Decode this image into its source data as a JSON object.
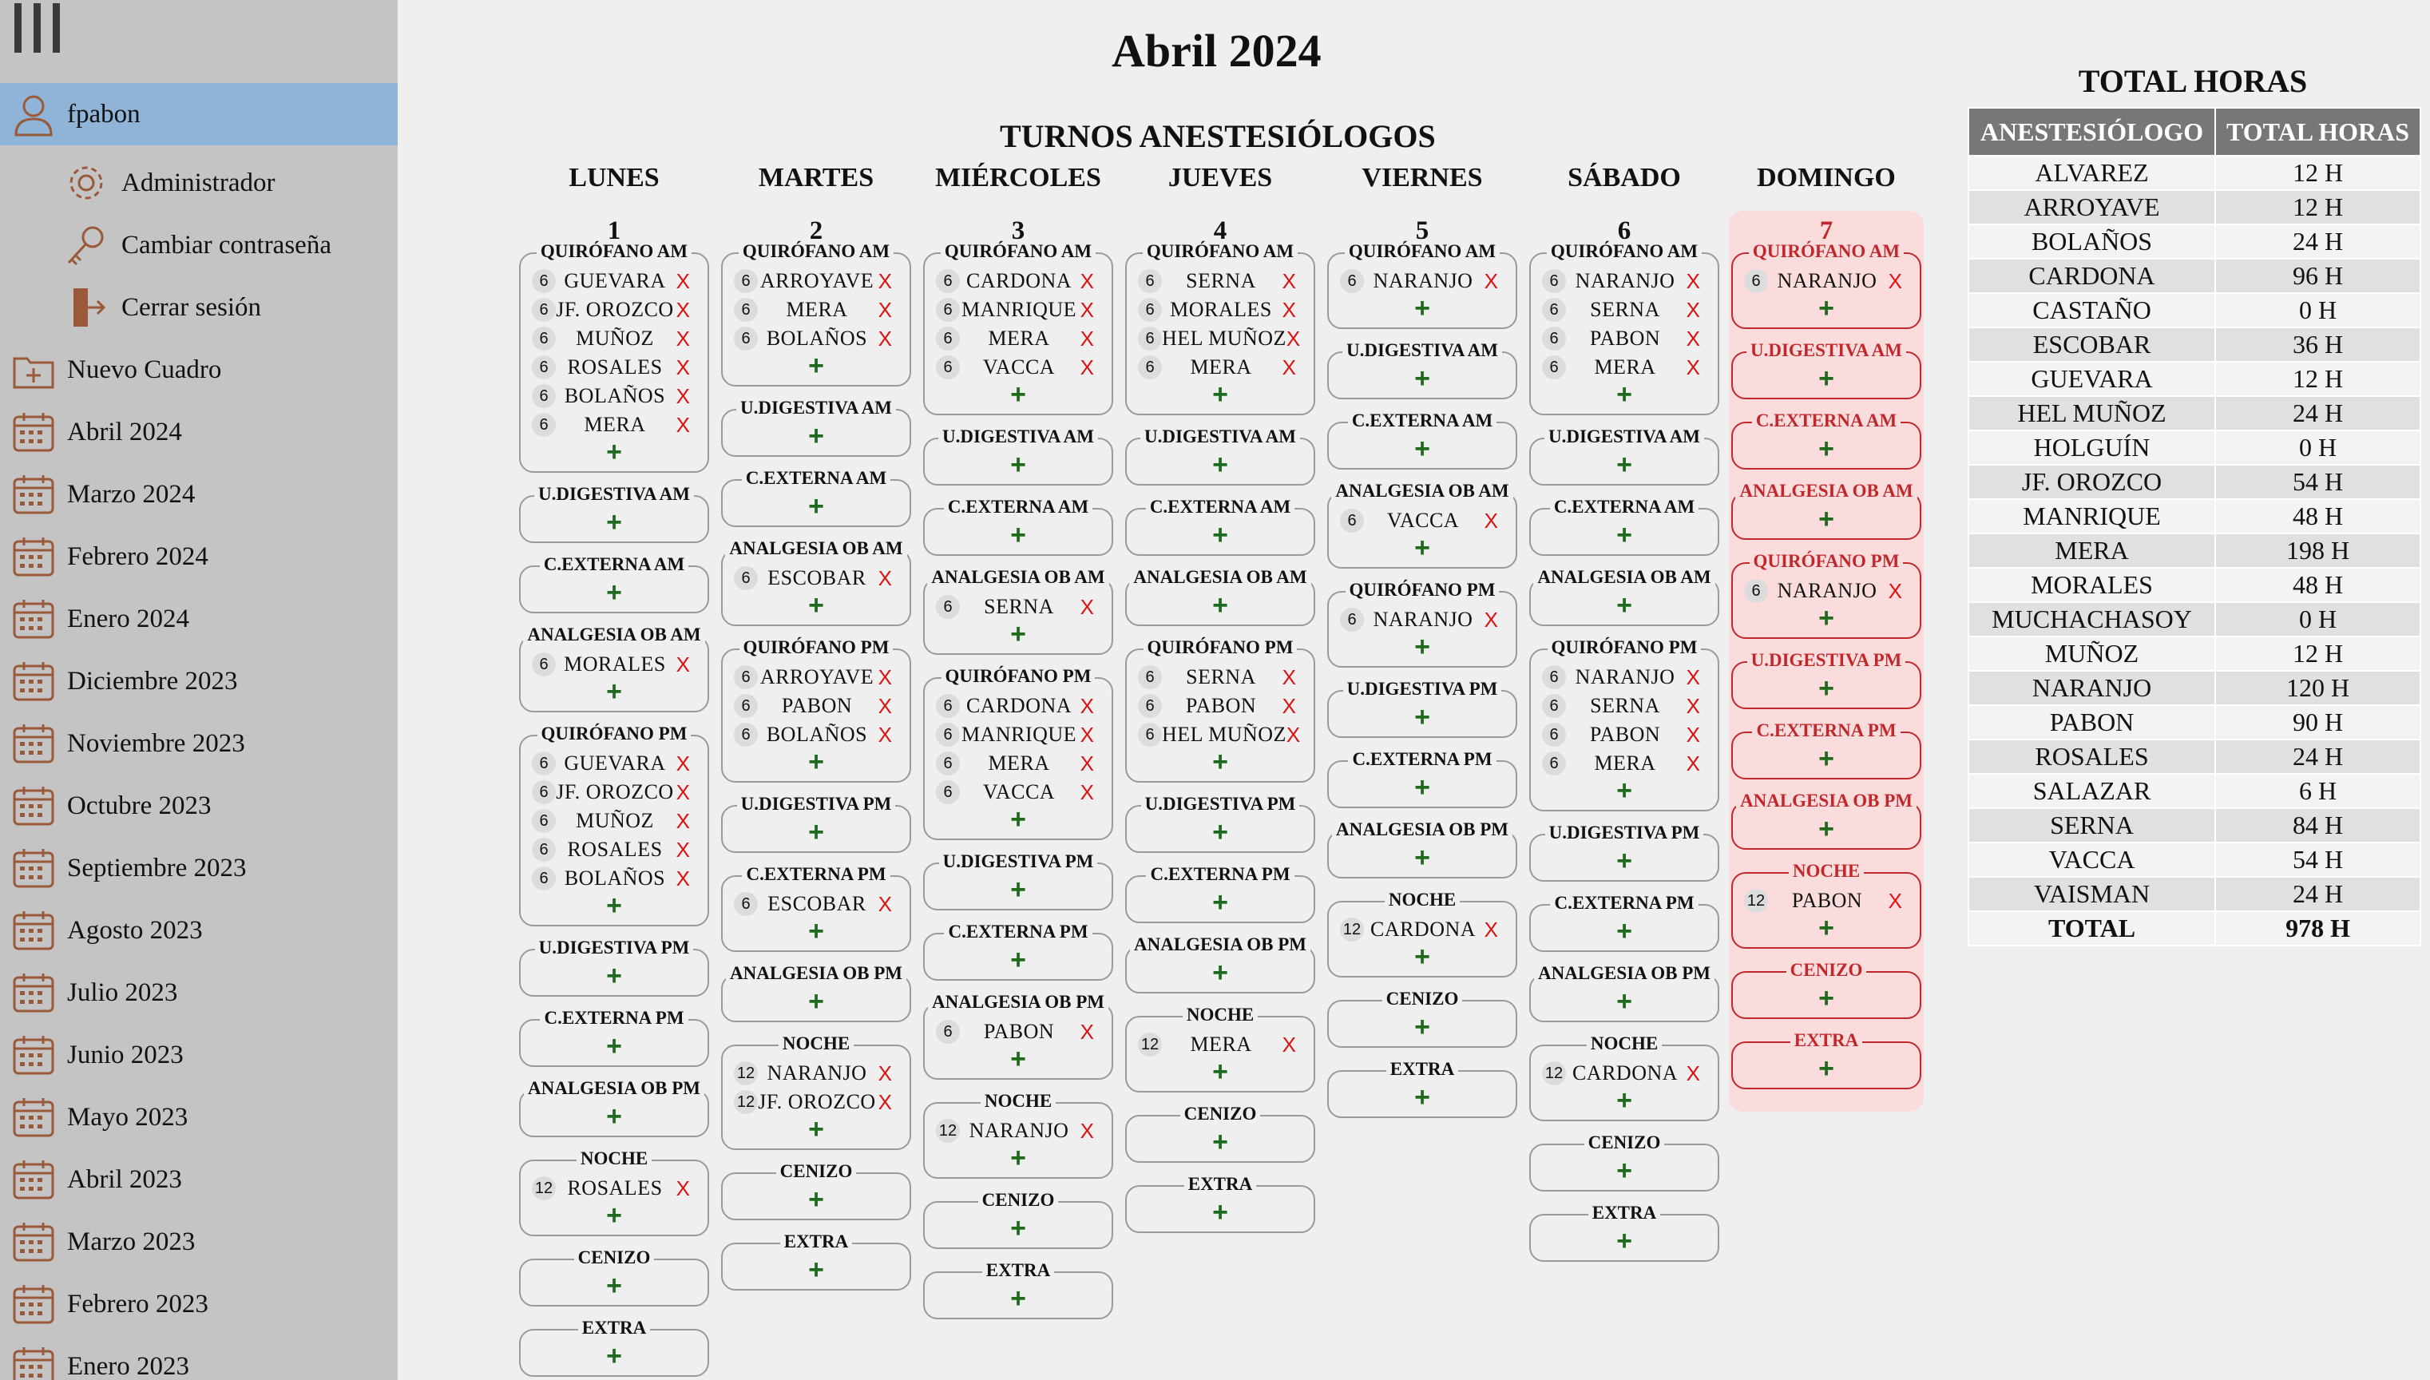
{
  "sidebar": {
    "user": "fpabon",
    "sub": [
      {
        "label": "Administrador",
        "icon": "gear-icon"
      },
      {
        "label": "Cambiar contraseña",
        "icon": "key-icon"
      },
      {
        "label": "Cerrar sesión",
        "icon": "logout-icon"
      }
    ],
    "new": "Nuevo Cuadro",
    "months": [
      "Abril 2024",
      "Marzo 2024",
      "Febrero 2024",
      "Enero 2024",
      "Diciembre 2023",
      "Noviembre 2023",
      "Octubre 2023",
      "Septiembre 2023",
      "Agosto 2023",
      "Julio 2023",
      "Junio 2023",
      "Mayo 2023",
      "Abril 2023",
      "Marzo 2023",
      "Febrero 2023",
      "Enero 2023"
    ]
  },
  "title": "Abril 2024",
  "subtitle": "TURNOS ANESTESIÓLOGOS",
  "days": [
    "LUNES",
    "MARTES",
    "MIÉRCOLES",
    "JUEVES",
    "VIERNES",
    "SÁBADO",
    "DOMINGO"
  ],
  "week": [
    {
      "num": "1",
      "blocks": [
        {
          "label": "QUIRÓFANO AM",
          "entries": [
            [
              "6",
              "GUEVARA"
            ],
            [
              "6",
              "JF. OROZCO"
            ],
            [
              "6",
              "MUÑOZ"
            ],
            [
              "6",
              "ROSALES"
            ],
            [
              "6",
              "BOLAÑOS"
            ],
            [
              "6",
              "MERA"
            ]
          ]
        },
        {
          "label": "U.DIGESTIVA AM",
          "entries": []
        },
        {
          "label": "C.EXTERNA AM",
          "entries": []
        },
        {
          "label": "ANALGESIA OB AM",
          "entries": [
            [
              "6",
              "MORALES"
            ]
          ]
        },
        {
          "label": "QUIRÓFANO PM",
          "entries": [
            [
              "6",
              "GUEVARA"
            ],
            [
              "6",
              "JF. OROZCO"
            ],
            [
              "6",
              "MUÑOZ"
            ],
            [
              "6",
              "ROSALES"
            ],
            [
              "6",
              "BOLAÑOS"
            ]
          ]
        },
        {
          "label": "U.DIGESTIVA PM",
          "entries": []
        },
        {
          "label": "C.EXTERNA PM",
          "entries": []
        },
        {
          "label": "ANALGESIA OB PM",
          "entries": []
        },
        {
          "label": "NOCHE",
          "entries": [
            [
              "12",
              "ROSALES"
            ]
          ]
        },
        {
          "label": "CENIZO",
          "entries": []
        },
        {
          "label": "EXTRA",
          "entries": []
        }
      ]
    },
    {
      "num": "2",
      "blocks": [
        {
          "label": "QUIRÓFANO AM",
          "entries": [
            [
              "6",
              "ARROYAVE"
            ],
            [
              "6",
              "MERA"
            ],
            [
              "6",
              "BOLAÑOS"
            ]
          ]
        },
        {
          "label": "U.DIGESTIVA AM",
          "entries": []
        },
        {
          "label": "C.EXTERNA AM",
          "entries": []
        },
        {
          "label": "ANALGESIA OB AM",
          "entries": [
            [
              "6",
              "ESCOBAR"
            ]
          ]
        },
        {
          "label": "QUIRÓFANO PM",
          "entries": [
            [
              "6",
              "ARROYAVE"
            ],
            [
              "6",
              "PABON"
            ],
            [
              "6",
              "BOLAÑOS"
            ]
          ]
        },
        {
          "label": "U.DIGESTIVA PM",
          "entries": []
        },
        {
          "label": "C.EXTERNA PM",
          "entries": [
            [
              "6",
              "ESCOBAR"
            ]
          ]
        },
        {
          "label": "ANALGESIA OB PM",
          "entries": []
        },
        {
          "label": "NOCHE",
          "entries": [
            [
              "12",
              "NARANJO"
            ],
            [
              "12",
              "JF. OROZCO"
            ]
          ]
        },
        {
          "label": "CENIZO",
          "entries": []
        },
        {
          "label": "EXTRA",
          "entries": []
        }
      ]
    },
    {
      "num": "3",
      "blocks": [
        {
          "label": "QUIRÓFANO AM",
          "entries": [
            [
              "6",
              "CARDONA"
            ],
            [
              "6",
              "MANRIQUE"
            ],
            [
              "6",
              "MERA"
            ],
            [
              "6",
              "VACCA"
            ]
          ]
        },
        {
          "label": "U.DIGESTIVA AM",
          "entries": []
        },
        {
          "label": "C.EXTERNA AM",
          "entries": []
        },
        {
          "label": "ANALGESIA OB AM",
          "entries": [
            [
              "6",
              "SERNA"
            ]
          ]
        },
        {
          "label": "QUIRÓFANO PM",
          "entries": [
            [
              "6",
              "CARDONA"
            ],
            [
              "6",
              "MANRIQUE"
            ],
            [
              "6",
              "MERA"
            ],
            [
              "6",
              "VACCA"
            ]
          ]
        },
        {
          "label": "U.DIGESTIVA PM",
          "entries": []
        },
        {
          "label": "C.EXTERNA PM",
          "entries": []
        },
        {
          "label": "ANALGESIA OB PM",
          "entries": [
            [
              "6",
              "PABON"
            ]
          ]
        },
        {
          "label": "NOCHE",
          "entries": [
            [
              "12",
              "NARANJO"
            ]
          ]
        },
        {
          "label": "CENIZO",
          "entries": []
        },
        {
          "label": "EXTRA",
          "entries": []
        }
      ]
    },
    {
      "num": "4",
      "blocks": [
        {
          "label": "QUIRÓFANO AM",
          "entries": [
            [
              "6",
              "SERNA"
            ],
            [
              "6",
              "MORALES"
            ],
            [
              "6",
              "HEL MUÑOZ"
            ],
            [
              "6",
              "MERA"
            ]
          ]
        },
        {
          "label": "U.DIGESTIVA AM",
          "entries": []
        },
        {
          "label": "C.EXTERNA AM",
          "entries": []
        },
        {
          "label": "ANALGESIA OB AM",
          "entries": []
        },
        {
          "label": "QUIRÓFANO PM",
          "entries": [
            [
              "6",
              "SERNA"
            ],
            [
              "6",
              "PABON"
            ],
            [
              "6",
              "HEL MUÑOZ"
            ]
          ]
        },
        {
          "label": "U.DIGESTIVA PM",
          "entries": []
        },
        {
          "label": "C.EXTERNA PM",
          "entries": []
        },
        {
          "label": "ANALGESIA OB PM",
          "entries": []
        },
        {
          "label": "NOCHE",
          "entries": [
            [
              "12",
              "MERA"
            ]
          ]
        },
        {
          "label": "CENIZO",
          "entries": []
        },
        {
          "label": "EXTRA",
          "entries": []
        }
      ]
    },
    {
      "num": "5",
      "blocks": [
        {
          "label": "QUIRÓFANO AM",
          "entries": [
            [
              "6",
              "NARANJO"
            ]
          ]
        },
        {
          "label": "U.DIGESTIVA AM",
          "entries": []
        },
        {
          "label": "C.EXTERNA AM",
          "entries": []
        },
        {
          "label": "ANALGESIA OB AM",
          "entries": [
            [
              "6",
              "VACCA"
            ]
          ]
        },
        {
          "label": "QUIRÓFANO PM",
          "entries": [
            [
              "6",
              "NARANJO"
            ]
          ]
        },
        {
          "label": "U.DIGESTIVA PM",
          "entries": []
        },
        {
          "label": "C.EXTERNA PM",
          "entries": []
        },
        {
          "label": "ANALGESIA OB PM",
          "entries": []
        },
        {
          "label": "NOCHE",
          "entries": [
            [
              "12",
              "CARDONA"
            ]
          ]
        },
        {
          "label": "CENIZO",
          "entries": []
        },
        {
          "label": "EXTRA",
          "entries": []
        }
      ]
    },
    {
      "num": "6",
      "blocks": [
        {
          "label": "QUIRÓFANO AM",
          "entries": [
            [
              "6",
              "NARANJO"
            ],
            [
              "6",
              "SERNA"
            ],
            [
              "6",
              "PABON"
            ],
            [
              "6",
              "MERA"
            ]
          ]
        },
        {
          "label": "U.DIGESTIVA AM",
          "entries": []
        },
        {
          "label": "C.EXTERNA AM",
          "entries": []
        },
        {
          "label": "ANALGESIA OB AM",
          "entries": []
        },
        {
          "label": "QUIRÓFANO PM",
          "entries": [
            [
              "6",
              "NARANJO"
            ],
            [
              "6",
              "SERNA"
            ],
            [
              "6",
              "PABON"
            ],
            [
              "6",
              "MERA"
            ]
          ]
        },
        {
          "label": "U.DIGESTIVA PM",
          "entries": []
        },
        {
          "label": "C.EXTERNA PM",
          "entries": []
        },
        {
          "label": "ANALGESIA OB PM",
          "entries": []
        },
        {
          "label": "NOCHE",
          "entries": [
            [
              "12",
              "CARDONA"
            ]
          ]
        },
        {
          "label": "CENIZO",
          "entries": []
        },
        {
          "label": "EXTRA",
          "entries": []
        }
      ]
    },
    {
      "num": "7",
      "blocks": [
        {
          "label": "QUIRÓFANO AM",
          "entries": [
            [
              "6",
              "NARANJO"
            ]
          ]
        },
        {
          "label": "U.DIGESTIVA AM",
          "entries": []
        },
        {
          "label": "C.EXTERNA AM",
          "entries": []
        },
        {
          "label": "ANALGESIA OB AM",
          "entries": []
        },
        {
          "label": "QUIRÓFANO PM",
          "entries": [
            [
              "6",
              "NARANJO"
            ]
          ]
        },
        {
          "label": "U.DIGESTIVA PM",
          "entries": []
        },
        {
          "label": "C.EXTERNA PM",
          "entries": []
        },
        {
          "label": "ANALGESIA OB PM",
          "entries": []
        },
        {
          "label": "NOCHE",
          "entries": [
            [
              "12",
              "PABON"
            ]
          ]
        },
        {
          "label": "CENIZO",
          "entries": []
        },
        {
          "label": "EXTRA",
          "entries": []
        }
      ]
    }
  ],
  "add_symbol": "+",
  "remove_symbol": "X",
  "totals": {
    "title": "TOTAL HORAS",
    "headers": [
      "ANESTESIÓLOGO",
      "TOTAL HORAS"
    ],
    "rows": [
      [
        "ALVAREZ",
        "12 H"
      ],
      [
        "ARROYAVE",
        "12 H"
      ],
      [
        "BOLAÑOS",
        "24 H"
      ],
      [
        "CARDONA",
        "96 H"
      ],
      [
        "CASTAÑO",
        "0 H"
      ],
      [
        "ESCOBAR",
        "36 H"
      ],
      [
        "GUEVARA",
        "12 H"
      ],
      [
        "HEL MUÑOZ",
        "24 H"
      ],
      [
        "HOLGUÍN",
        "0 H"
      ],
      [
        "JF. OROZCO",
        "54 H"
      ],
      [
        "MANRIQUE",
        "48 H"
      ],
      [
        "MERA",
        "198 H"
      ],
      [
        "MORALES",
        "48 H"
      ],
      [
        "MUCHACHASOY",
        "0 H"
      ],
      [
        "MUÑOZ",
        "12 H"
      ],
      [
        "NARANJO",
        "120 H"
      ],
      [
        "PABON",
        "90 H"
      ],
      [
        "ROSALES",
        "24 H"
      ],
      [
        "SALAZAR",
        "6 H"
      ],
      [
        "SERNA",
        "84 H"
      ],
      [
        "VACCA",
        "54 H"
      ],
      [
        "VAISMAN",
        "24 H"
      ]
    ],
    "total_label": "TOTAL",
    "total_value": "978 H"
  }
}
